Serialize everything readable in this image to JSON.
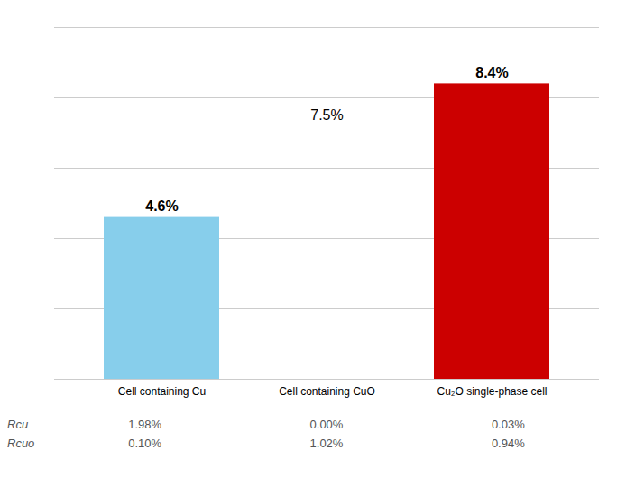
{
  "chart_data": {
    "type": "bar",
    "categories": [
      "Cell containing Cu",
      "Cell containing CuO",
      "Cu₂O single-phase cell"
    ],
    "values": [
      4.6,
      null,
      8.4
    ],
    "value_labels": [
      "4.6%",
      null,
      "8.4%"
    ],
    "colors": [
      "#87CEEB",
      null,
      "#CC0000"
    ],
    "data_labels": true,
    "annotations": [
      {
        "text": "7.5%",
        "x": "Cell containing CuO",
        "y": 7.5
      }
    ],
    "ylim": [
      0,
      10
    ],
    "yticks": [
      0,
      2,
      4,
      6,
      8,
      10
    ],
    "grid": true,
    "tick_labels": "x",
    "table": {
      "rows": [
        "Rcu",
        "Rcuo"
      ],
      "cells": [
        [
          "1.98%",
          "0.00%",
          "0.03%"
        ],
        [
          "0.10%",
          "1.02%",
          "0.94%"
        ]
      ]
    }
  }
}
